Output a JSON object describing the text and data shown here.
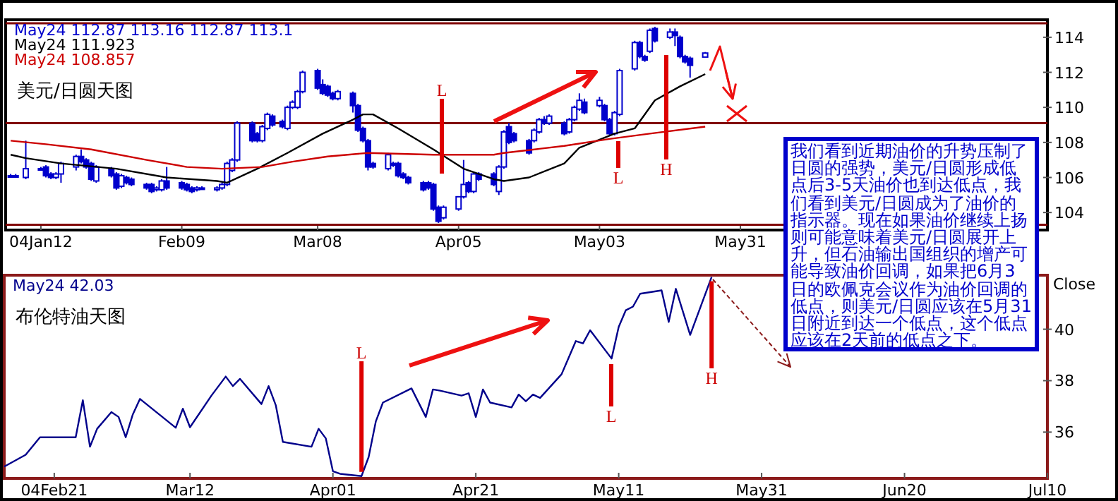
{
  "chart_data": [
    {
      "type": "candlestick",
      "title": "美元/日圆天图",
      "legend": "top left",
      "xlim": [
        "--01-05",
        "--07-31"
      ],
      "ylim": [
        103,
        115
      ],
      "yticks": [
        104,
        106,
        108,
        110,
        112,
        114
      ],
      "xticks": [
        {
          "value": "--01-12",
          "label": "04Jan12"
        },
        {
          "value": "--02-09",
          "label": "Feb09"
        },
        {
          "value": "--03-08",
          "label": "Mar08"
        },
        {
          "value": "--04-05",
          "label": "Apr05"
        },
        {
          "value": "--05-03",
          "label": "May03"
        },
        {
          "value": "--05-31",
          "label": "May31"
        }
      ],
      "series": [
        {
          "name": "May24 112.87 113.16 112.87 113.1",
          "color": "#0000cc",
          "x": [
            "--01-06",
            "--01-07",
            "--01-09",
            "--01-12",
            "--01-13",
            "--01-14",
            "--01-15",
            "--01-16",
            "--01-19",
            "--01-20",
            "--01-21",
            "--01-22",
            "--01-23",
            "--01-26",
            "--01-27",
            "--01-28",
            "--01-29",
            "--01-30",
            "--02-02",
            "--02-03",
            "--02-04",
            "--02-05",
            "--02-06",
            "--02-09",
            "--02-10",
            "--02-11",
            "--02-12",
            "--02-13",
            "--02-16",
            "--02-17",
            "--02-18",
            "--02-19",
            "--02-20",
            "--02-23",
            "--02-24",
            "--02-25",
            "--02-26",
            "--02-27",
            "--03-01",
            "--03-02",
            "--03-03",
            "--03-04",
            "--03-05",
            "--03-08",
            "--03-09",
            "--03-10",
            "--03-11",
            "--03-12",
            "--03-15",
            "--03-16",
            "--03-17",
            "--03-18",
            "--03-19",
            "--03-22",
            "--03-23",
            "--03-24",
            "--03-25",
            "--03-26",
            "--03-29",
            "--03-30",
            "--03-31",
            "--04-01",
            "--04-02",
            "--04-05",
            "--04-06",
            "--04-07",
            "--04-08",
            "--04-09",
            "--04-12",
            "--04-13",
            "--04-14",
            "--04-15",
            "--04-16",
            "--04-19",
            "--04-20",
            "--04-21",
            "--04-22",
            "--04-23",
            "--04-26",
            "--04-27",
            "--04-28",
            "--04-29",
            "--04-30",
            "--05-03",
            "--05-04",
            "--05-05",
            "--05-06",
            "--05-07",
            "--05-10",
            "--05-11",
            "--05-12",
            "--05-13",
            "--05-14",
            "--05-17",
            "--05-18",
            "--05-19",
            "--05-20",
            "--05-21",
            "--05-24"
          ],
          "ohlc": [
            [
              106.1,
              106.2,
              106.0,
              106.1
            ],
            [
              106.1,
              106.2,
              106.0,
              106.1
            ],
            [
              106.0,
              108.1,
              105.9,
              106.5
            ],
            [
              106.5,
              106.6,
              106.4,
              106.5
            ],
            [
              106.6,
              106.7,
              106.0,
              106.1
            ],
            [
              106.2,
              106.3,
              105.9,
              106.0
            ],
            [
              106.0,
              106.3,
              105.9,
              106.2
            ],
            [
              106.2,
              106.9,
              105.7,
              106.8
            ],
            [
              106.6,
              107.3,
              106.4,
              107.2
            ],
            [
              107.2,
              107.6,
              106.8,
              106.9
            ],
            [
              107.0,
              107.1,
              106.5,
              106.6
            ],
            [
              106.8,
              106.9,
              105.8,
              105.9
            ],
            [
              105.8,
              106.7,
              105.7,
              106.6
            ],
            [
              106.5,
              106.6,
              106.0,
              106.1
            ],
            [
              106.2,
              106.3,
              105.3,
              105.4
            ],
            [
              105.5,
              106.2,
              105.4,
              106.1
            ],
            [
              106.0,
              106.1,
              105.6,
              105.7
            ],
            [
              105.9,
              106.0,
              105.5,
              105.6
            ],
            [
              105.6,
              105.7,
              105.3,
              105.4
            ],
            [
              105.6,
              105.7,
              105.1,
              105.2
            ],
            [
              105.3,
              105.5,
              105.2,
              105.4
            ],
            [
              105.3,
              105.9,
              105.2,
              105.8
            ],
            [
              105.8,
              106.6,
              105.3,
              105.4
            ],
            [
              105.7,
              105.8,
              105.3,
              105.4
            ],
            [
              105.6,
              105.7,
              105.2,
              105.3
            ],
            [
              105.4,
              105.5,
              105.1,
              105.2
            ],
            [
              105.3,
              105.5,
              105.2,
              105.4
            ],
            [
              105.4,
              105.5,
              105.3,
              105.4
            ],
            [
              105.3,
              105.5,
              105.2,
              105.4
            ],
            [
              105.4,
              105.7,
              105.3,
              105.6
            ],
            [
              105.6,
              106.9,
              105.5,
              106.8
            ],
            [
              106.4,
              107.1,
              106.3,
              107.0
            ],
            [
              107.0,
              109.2,
              106.9,
              109.1
            ],
            [
              109.1,
              109.2,
              108.0,
              108.1
            ],
            [
              108.5,
              108.6,
              108.0,
              108.1
            ],
            [
              108.1,
              109.0,
              108.0,
              108.9
            ],
            [
              108.8,
              109.7,
              108.7,
              109.6
            ],
            [
              109.5,
              109.6,
              108.9,
              109.0
            ],
            [
              109.2,
              109.3,
              108.8,
              108.9
            ],
            [
              108.8,
              110.1,
              108.7,
              110.0
            ],
            [
              110.0,
              110.4,
              109.9,
              110.3
            ],
            [
              110.0,
              111.0,
              109.9,
              110.9
            ],
            [
              110.9,
              112.1,
              110.8,
              112.0
            ],
            [
              112.1,
              112.2,
              111.0,
              111.1
            ],
            [
              111.3,
              111.6,
              110.7,
              110.8
            ],
            [
              111.2,
              111.3,
              110.6,
              110.7
            ],
            [
              110.8,
              110.9,
              110.4,
              110.5
            ],
            [
              110.5,
              111.0,
              110.4,
              110.9
            ],
            [
              110.8,
              110.9,
              109.7,
              110.1
            ],
            [
              110.1,
              110.2,
              108.6,
              108.7
            ],
            [
              108.8,
              108.9,
              108.0,
              108.1
            ],
            [
              108.1,
              108.2,
              106.4,
              106.6
            ],
            [
              106.8,
              106.9,
              106.5,
              106.6
            ],
            [
              106.5,
              107.4,
              106.4,
              107.3
            ],
            [
              106.8,
              106.9,
              106.6,
              106.7
            ],
            [
              106.8,
              106.9,
              106.0,
              106.1
            ],
            [
              106.2,
              106.3,
              105.9,
              106.0
            ],
            [
              106.0,
              106.1,
              105.6,
              105.7
            ],
            [
              105.7,
              105.8,
              105.2,
              105.3
            ],
            [
              105.7,
              105.8,
              105.3,
              105.4
            ],
            [
              105.6,
              105.7,
              104.1,
              104.2
            ],
            [
              104.3,
              104.4,
              103.4,
              103.5
            ],
            [
              103.7,
              104.4,
              103.6,
              104.3
            ],
            [
              104.2,
              104.9,
              104.1,
              104.9
            ],
            [
              104.9,
              107.0,
              104.8,
              105.6
            ],
            [
              105.7,
              105.8,
              105.1,
              105.2
            ],
            [
              105.2,
              106.3,
              105.1,
              106.2
            ],
            [
              106.2,
              106.3,
              105.8,
              105.9
            ],
            [
              106.2,
              106.3,
              105.5,
              105.6
            ],
            [
              105.2,
              106.7,
              105.0,
              106.6
            ],
            [
              106.6,
              108.7,
              106.5,
              108.6
            ],
            [
              108.9,
              109.1,
              107.9,
              108.0
            ],
            [
              108.5,
              108.6,
              108.0,
              108.1
            ],
            [
              108.1,
              108.2,
              107.3,
              107.4
            ],
            [
              108.1,
              108.8,
              108.0,
              108.7
            ],
            [
              108.6,
              109.4,
              108.5,
              109.3
            ],
            [
              109.3,
              109.5,
              109.0,
              109.1
            ],
            [
              109.1,
              109.6,
              109.0,
              109.5
            ],
            [
              109.1,
              109.2,
              108.4,
              108.5
            ],
            [
              108.6,
              109.4,
              108.5,
              109.3
            ],
            [
              109.3,
              110.1,
              109.2,
              110.0
            ],
            [
              109.9,
              110.8,
              109.8,
              110.4
            ],
            [
              110.3,
              110.5,
              109.6,
              109.7
            ],
            [
              110.1,
              110.6,
              110.0,
              110.4
            ],
            [
              110.1,
              110.2,
              109.2,
              109.3
            ],
            [
              109.3,
              109.4,
              108.4,
              108.5
            ],
            [
              108.5,
              109.8,
              108.4,
              109.7
            ],
            [
              109.6,
              112.2,
              109.5,
              112.1
            ],
            [
              112.2,
              113.8,
              112.1,
              113.7
            ],
            [
              113.7,
              113.8,
              112.8,
              112.9
            ],
            [
              112.9,
              113.0,
              112.6,
              112.7
            ],
            [
              113.2,
              114.5,
              113.1,
              114.4
            ],
            [
              114.5,
              114.6,
              113.7,
              113.8
            ],
            [
              114.0,
              114.5,
              113.9,
              114.3
            ],
            [
              114.3,
              114.5,
              113.5,
              114.1
            ],
            [
              114.0,
              114.1,
              112.8,
              112.9
            ],
            [
              112.9,
              113.0,
              112.5,
              112.6
            ],
            [
              112.8,
              112.9,
              111.7,
              112.4
            ],
            [
              112.87,
              113.16,
              112.87,
              113.1
            ]
          ]
        },
        {
          "type": "line",
          "name": "May24 111.923",
          "color": "#000000",
          "x": [
            "--01-06",
            "--01-09",
            "--01-16",
            "--01-27",
            "--02-06",
            "--02-16",
            "--02-18",
            "--02-24",
            "--03-02",
            "--03-09",
            "--03-15",
            "--03-17",
            "--03-19",
            "--03-24",
            "--03-31",
            "--04-06",
            "--04-12",
            "--04-14",
            "--04-19",
            "--04-26",
            "--04-29",
            "--05-06",
            "--05-10",
            "--05-14",
            "--05-19",
            "--05-24"
          ],
          "values": [
            107.3,
            107.1,
            106.8,
            106.5,
            106.0,
            105.8,
            105.7,
            106.5,
            107.4,
            108.5,
            109.3,
            109.6,
            109.6,
            108.8,
            107.6,
            106.5,
            105.9,
            105.8,
            106.0,
            106.8,
            107.7,
            108.5,
            108.8,
            110.4,
            111.2,
            111.9
          ]
        },
        {
          "type": "line",
          "name": "May24 108.857",
          "color": "#cc0000",
          "x": [
            "--01-06",
            "--01-13",
            "--01-22",
            "--02-02",
            "--02-10",
            "--02-17",
            "--02-25",
            "--03-03",
            "--03-10",
            "--03-18",
            "--03-31",
            "--04-12",
            "--04-14",
            "--04-26",
            "--05-05",
            "--05-13",
            "--05-24"
          ],
          "values": [
            108.1,
            107.9,
            107.6,
            107.0,
            106.6,
            106.5,
            106.6,
            106.9,
            107.2,
            107.4,
            107.3,
            107.3,
            107.4,
            107.8,
            108.2,
            108.5,
            108.9
          ]
        }
      ],
      "ref_lines": [
        {
          "axis": "y",
          "value": 109.1,
          "color": "#800000"
        },
        {
          "axis": "y",
          "value": 114.8,
          "color": "#800000"
        },
        {
          "axis": "y",
          "value": 103.3,
          "color": "#800000"
        }
      ],
      "annotations": [
        "L",
        "L",
        "H",
        "我们看到近期油价的升势压制了日圆的强势，美元/日圆形成低点后3-5天油价也到达低点，我们看到美元/日圆成为了油价的指示器。现在如果油价继续上扬则可能意味着美元/日圆展开上升，但石油输出国组织的增产可能导致油价回调，如果把6月3日的欧佩克会议作为油价回调的低点，则美元/日圆应该在5月31日附近到达一个低点，这个低点应该在2天前的低点之下。"
      ]
    },
    {
      "type": "line",
      "title": "布伦特油天图",
      "legend": "top left",
      "ylabel": "Close",
      "xlim": [
        "--02-14",
        "--07-10"
      ],
      "ylim": [
        34.2,
        42.1
      ],
      "yticks": [
        36,
        38,
        40
      ],
      "xticks": [
        {
          "value": "--02-21",
          "label": "04Feb21"
        },
        {
          "value": "--03-12",
          "label": "Mar12"
        },
        {
          "value": "--04-01",
          "label": "Apr01"
        },
        {
          "value": "--04-21",
          "label": "Apr21"
        },
        {
          "value": "--05-11",
          "label": "May11"
        },
        {
          "value": "--05-31",
          "label": "May31"
        },
        {
          "value": "--06-20",
          "label": "Jun20"
        },
        {
          "value": "--07-10",
          "label": "Jul10"
        }
      ],
      "series": [
        {
          "name": "May24 42.03",
          "color": "#00008b",
          "x": [
            "--02-14",
            "--02-17",
            "--02-19",
            "--02-24",
            "--02-25",
            "--02-26",
            "--02-27",
            "--03-01",
            "--03-02",
            "--03-03",
            "--03-04",
            "--03-05",
            "--03-10",
            "--03-11",
            "--03-12",
            "--03-15",
            "--03-17",
            "--03-18",
            "--03-19",
            "--03-22",
            "--03-23",
            "--03-24",
            "--03-25",
            "--03-29",
            "--03-30",
            "--03-31",
            "--04-01",
            "--04-02",
            "--04-05",
            "--04-06",
            "--04-07",
            "--04-08",
            "--04-12",
            "--04-14",
            "--04-15",
            "--04-16",
            "--04-19",
            "--04-20",
            "--04-21",
            "--04-22",
            "--04-23",
            "--04-26",
            "--04-27",
            "--04-28",
            "--04-29",
            "--04-30",
            "--05-03",
            "--05-05",
            "--05-06",
            "--05-07",
            "--05-10",
            "--05-11",
            "--05-12",
            "--05-13",
            "--05-14",
            "--05-17",
            "--05-18",
            "--05-19",
            "--05-21",
            "--05-24"
          ],
          "values": [
            34.66,
            35.12,
            35.8,
            35.8,
            37.24,
            35.43,
            36.13,
            36.78,
            36.59,
            35.8,
            36.69,
            37.29,
            36.17,
            36.91,
            36.19,
            37.42,
            38.16,
            37.79,
            38.07,
            37.09,
            37.79,
            37.05,
            35.62,
            35.43,
            36.13,
            35.76,
            34.48,
            34.38,
            34.29,
            35.03,
            36.41,
            37.15,
            37.7,
            36.59,
            37.66,
            37.61,
            37.42,
            37.51,
            36.59,
            37.66,
            37.15,
            36.96,
            37.46,
            37.2,
            37.46,
            37.33,
            38.25,
            39.54,
            39.45,
            39.96,
            38.86,
            40.09,
            40.74,
            40.88,
            41.38,
            41.51,
            40.28,
            41.57,
            39.78,
            42.03
          ]
        }
      ],
      "annotations": [
        {
          "text": "L",
          "x": "--04-05",
          "y": 34.29
        },
        "L",
        {
          "text": "H",
          "x": "--05-24",
          "y": 42.03
        }
      ]
    }
  ]
}
